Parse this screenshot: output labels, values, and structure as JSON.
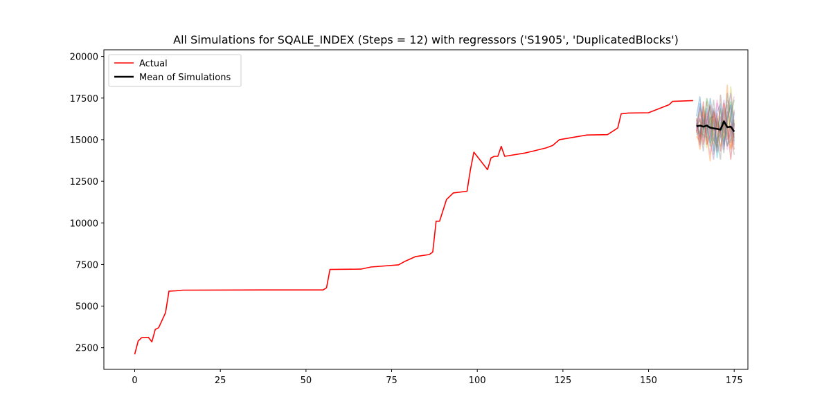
{
  "chart_data": {
    "type": "line",
    "title": "All Simulations for SQALE_INDEX (Steps = 12) with regressors ('S1905', 'DuplicatedBlocks')",
    "xlabel": "",
    "ylabel": "",
    "xlim": [
      -9,
      179
    ],
    "ylim": [
      1200,
      20400
    ],
    "xticks": [
      0,
      25,
      50,
      75,
      100,
      125,
      150,
      175
    ],
    "yticks": [
      2500,
      5000,
      7500,
      10000,
      12500,
      15000,
      17500,
      20000
    ],
    "grid": false,
    "legend_position": "top-left",
    "colors": {
      "actual": "#ff0000",
      "mean": "#000000",
      "simulation_palette": [
        "#1f77b4",
        "#ff7f0e",
        "#2ca02c",
        "#d62728",
        "#9467bd",
        "#8c564b",
        "#e377c2",
        "#7f7f7f",
        "#bcbd22",
        "#17becf"
      ]
    },
    "legend": [
      {
        "label": "Actual",
        "series": "actual"
      },
      {
        "label": "Mean of Simulations",
        "series": "mean"
      }
    ],
    "series": [
      {
        "name": "Actual",
        "key": "actual",
        "points": [
          [
            0,
            2100
          ],
          [
            1,
            2900
          ],
          [
            2,
            3100
          ],
          [
            3,
            3120
          ],
          [
            4,
            3120
          ],
          [
            5,
            2850
          ],
          [
            6,
            3600
          ],
          [
            7,
            3700
          ],
          [
            9,
            4600
          ],
          [
            10,
            5900
          ],
          [
            12,
            5920
          ],
          [
            14,
            5960
          ],
          [
            40,
            5970
          ],
          [
            55,
            5970
          ],
          [
            56,
            6100
          ],
          [
            57,
            7200
          ],
          [
            66,
            7220
          ],
          [
            69,
            7350
          ],
          [
            77,
            7480
          ],
          [
            79,
            7700
          ],
          [
            82,
            7980
          ],
          [
            86,
            8100
          ],
          [
            87,
            8250
          ],
          [
            88,
            10100
          ],
          [
            89,
            10100
          ],
          [
            91,
            11400
          ],
          [
            93,
            11800
          ],
          [
            97,
            11900
          ],
          [
            98,
            13200
          ],
          [
            99,
            14250
          ],
          [
            103,
            13200
          ],
          [
            104,
            13900
          ],
          [
            105,
            14000
          ],
          [
            106,
            14000
          ],
          [
            107,
            14600
          ],
          [
            108,
            14000
          ],
          [
            114,
            14200
          ],
          [
            117,
            14350
          ],
          [
            118,
            14400
          ],
          [
            120,
            14500
          ],
          [
            122,
            14650
          ],
          [
            124,
            15000
          ],
          [
            132,
            15280
          ],
          [
            138,
            15300
          ],
          [
            141,
            15700
          ],
          [
            142,
            16550
          ],
          [
            144,
            16600
          ],
          [
            150,
            16620
          ],
          [
            156,
            17100
          ],
          [
            157,
            17300
          ],
          [
            163,
            17350
          ]
        ]
      },
      {
        "name": "Mean of Simulations",
        "key": "mean",
        "points": [
          [
            164,
            15800
          ],
          [
            165,
            15850
          ],
          [
            166,
            15780
          ],
          [
            167,
            15850
          ],
          [
            168,
            15720
          ],
          [
            169,
            15680
          ],
          [
            170,
            15650
          ],
          [
            171,
            15600
          ],
          [
            172,
            16100
          ],
          [
            173,
            15750
          ],
          [
            174,
            15780
          ],
          [
            175,
            15480
          ]
        ]
      }
    ],
    "simulations": {
      "x": [
        164,
        165,
        166,
        167,
        168,
        169,
        170,
        171,
        172,
        173,
        174,
        175
      ],
      "runs": [
        [
          15800,
          17200,
          16100,
          15300,
          17500,
          16000,
          14800,
          16900,
          15400,
          17800,
          16200,
          15300
        ],
        [
          15600,
          14400,
          15800,
          16600,
          15200,
          14700,
          16300,
          15100,
          16800,
          15400,
          14500,
          16200
        ],
        [
          16000,
          15200,
          17000,
          15900,
          14600,
          16800,
          15700,
          16400,
          14900,
          16100,
          17300,
          15800
        ],
        [
          15500,
          16300,
          14700,
          16100,
          17100,
          15500,
          16600,
          14300,
          16200,
          15000,
          15900,
          14400
        ],
        [
          16200,
          15100,
          16500,
          14900,
          15700,
          16900,
          14200,
          15800,
          17400,
          15600,
          14800,
          16700
        ],
        [
          15400,
          16900,
          15600,
          17300,
          16000,
          14900,
          16100,
          15500,
          14700,
          16700,
          16100,
          15100
        ],
        [
          15900,
          14600,
          16800,
          15400,
          14100,
          15600,
          17200,
          16300,
          15800,
          14400,
          16600,
          17600
        ],
        [
          15700,
          15800,
          14300,
          16400,
          15800,
          17400,
          15000,
          13800,
          16500,
          17100,
          15300,
          14100
        ],
        [
          16100,
          16600,
          15900,
          14500,
          16400,
          15200,
          15900,
          16800,
          15100,
          15700,
          18200,
          15900
        ],
        [
          15300,
          15500,
          16300,
          15800,
          14800,
          16200,
          13900,
          15200,
          16900,
          14700,
          15000,
          16600
        ],
        [
          16400,
          17600,
          15400,
          16900,
          15600,
          14300,
          16700,
          17100,
          14600,
          16300,
          17100,
          14900
        ],
        [
          15200,
          14900,
          16700,
          15200,
          13700,
          16500,
          15400,
          14600,
          15500,
          18300,
          14400,
          15400
        ],
        [
          15850,
          16200,
          15100,
          17500,
          16700,
          15000,
          14600,
          16000,
          16100,
          15200,
          16400,
          17400
        ],
        [
          16300,
          15000,
          17300,
          14700,
          15300,
          16700,
          15800,
          15400,
          17200,
          15900,
          13800,
          16000
        ],
        [
          15650,
          17000,
          15900,
          16200,
          14900,
          13800,
          16300,
          15600,
          14400,
          16500,
          17800,
          15600
        ],
        [
          15950,
          14700,
          16200,
          15600,
          16300,
          16400,
          14300,
          17700,
          15700,
          14600,
          15600,
          15200
        ],
        [
          15550,
          16500,
          14900,
          16700,
          15100,
          15300,
          17400,
          16100,
          16600,
          15300,
          15200,
          16800
        ],
        [
          16050,
          15400,
          15300,
          15100,
          17000,
          14100,
          15100,
          15300,
          14200,
          17400,
          16800,
          14700
        ]
      ]
    }
  }
}
